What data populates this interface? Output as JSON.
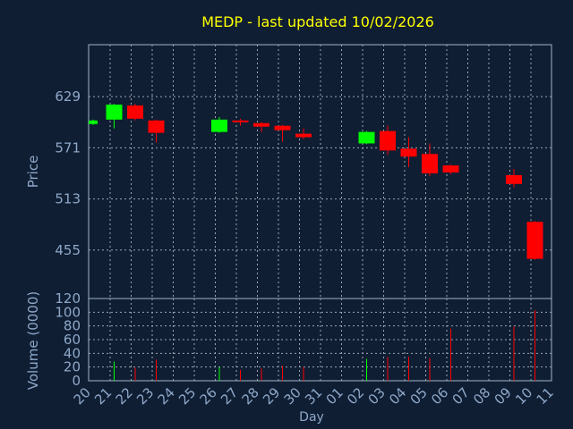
{
  "chart_data": {
    "type": "candlestick",
    "title": "MEDP - last updated 10/02/2026",
    "xlabel": "Day",
    "ylabel_price": "Price",
    "ylabel_volume": "Volume (0000)",
    "price_ticks": [
      "629",
      "571",
      "513",
      "455"
    ],
    "price_tick_values": [
      629,
      571,
      513,
      455
    ],
    "price_range": [
      400,
      688
    ],
    "volume_ticks": [
      "120",
      "100",
      "80",
      "60",
      "40",
      "20",
      "0"
    ],
    "volume_tick_values": [
      120,
      100,
      80,
      60,
      40,
      20,
      0
    ],
    "volume_range": [
      0,
      120
    ],
    "x_labels": [
      "20",
      "21",
      "22",
      "23",
      "24",
      "25",
      "26",
      "27",
      "28",
      "29",
      "30",
      "31",
      "01",
      "02",
      "03",
      "04",
      "05",
      "06",
      "07",
      "08",
      "09",
      "10",
      "11"
    ],
    "candles": [
      {
        "x": 0,
        "open": 598,
        "close": 602,
        "high": 603,
        "low": 597,
        "volume": 0
      },
      {
        "x": 1,
        "open": 603,
        "close": 620,
        "high": 621,
        "low": 593,
        "volume": 28
      },
      {
        "x": 2,
        "open": 619,
        "close": 604,
        "high": 621,
        "low": 602,
        "volume": 19
      },
      {
        "x": 3,
        "open": 602,
        "close": 588,
        "high": 603,
        "low": 577,
        "volume": 31
      },
      {
        "x": 6,
        "open": 589,
        "close": 603,
        "high": 606,
        "low": 588,
        "volume": 20
      },
      {
        "x": 7,
        "open": 602,
        "close": 600,
        "high": 604,
        "low": 596,
        "volume": 16
      },
      {
        "x": 8,
        "open": 599,
        "close": 595,
        "high": 600,
        "low": 589,
        "volume": 18
      },
      {
        "x": 9,
        "open": 596,
        "close": 591,
        "high": 597,
        "low": 578,
        "volume": 22
      },
      {
        "x": 10,
        "open": 587,
        "close": 583,
        "high": 593,
        "low": 581,
        "volume": 20
      },
      {
        "x": 13,
        "open": 576,
        "close": 589,
        "high": 590,
        "low": 575,
        "volume": 32
      },
      {
        "x": 14,
        "open": 590,
        "close": 568,
        "high": 596,
        "low": 563,
        "volume": 35
      },
      {
        "x": 15,
        "open": 570,
        "close": 561,
        "high": 583,
        "low": 549,
        "volume": 35
      },
      {
        "x": 16,
        "open": 564,
        "close": 542,
        "high": 576,
        "low": 539,
        "volume": 33
      },
      {
        "x": 17,
        "open": 551,
        "close": 543,
        "high": 552,
        "low": 541,
        "volume": 76
      },
      {
        "x": 20,
        "open": 540,
        "close": 530,
        "high": 547,
        "low": 526,
        "volume": 79
      },
      {
        "x": 21,
        "open": 487,
        "close": 445,
        "high": 488,
        "low": 444,
        "volume": 103
      }
    ],
    "colors": {
      "background": "#0f1e33",
      "plot": "#0f1e33",
      "frame": "#a0b4c8",
      "grid": "#9aa6b2",
      "up": "#00ff00",
      "down": "#ff0000",
      "title": "#ffff00",
      "label": "#8fa8c8",
      "axis_text": "#b8c8d8"
    }
  }
}
